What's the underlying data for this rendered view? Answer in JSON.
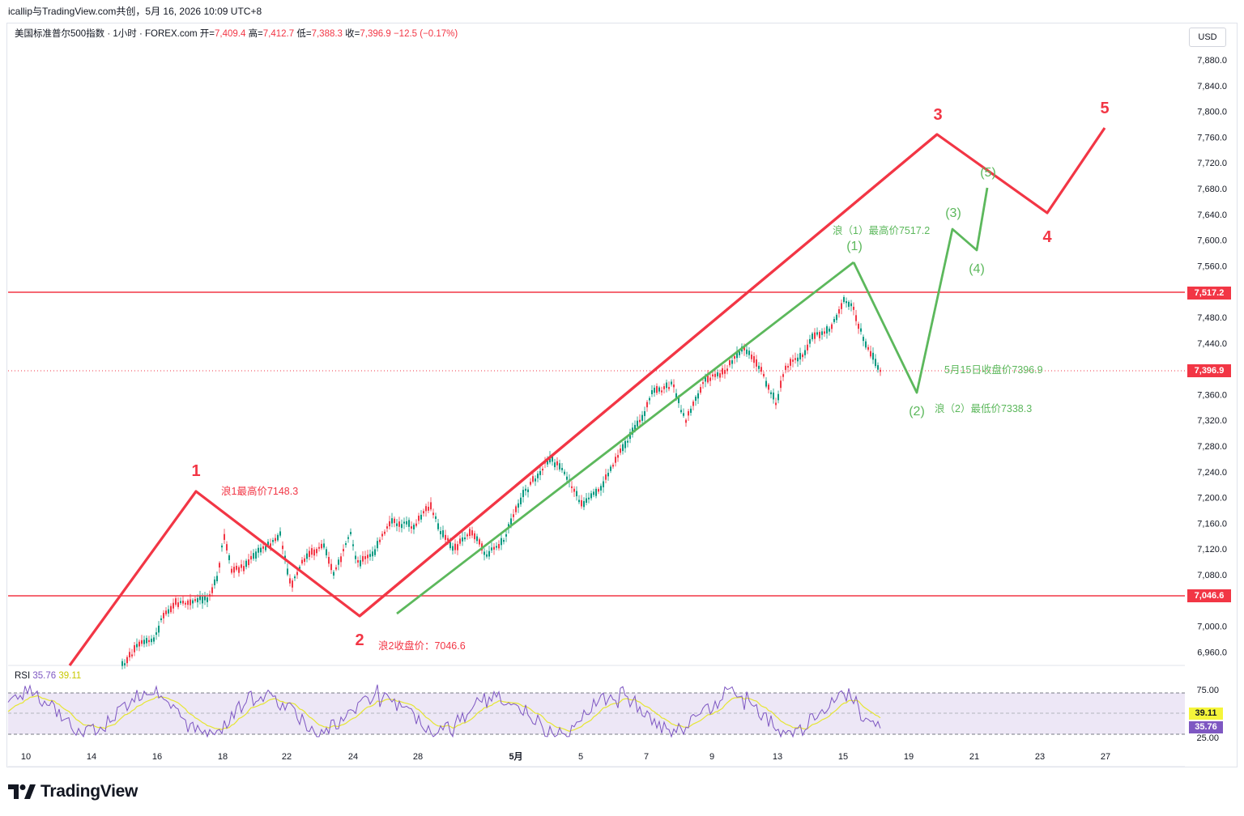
{
  "header": {
    "title": "icallip与TradingView.com共创，5月 16, 2026 10:09 UTC+8"
  },
  "legend": {
    "symbol": "美国标准普尔500指数 · 1小时 · FOREX.com",
    "open_label": "开=",
    "open": "7,409.4",
    "high_label": "高=",
    "high": "7,412.7",
    "low_label": "低=",
    "low": "7,388.3",
    "close_label": "收=",
    "close": "7,396.9",
    "change": "−12.5 (−0.17%)"
  },
  "currency": "USD",
  "price_axis": {
    "labels": [
      "7,880.0",
      "7,840.0",
      "7,800.0",
      "7,760.0",
      "7,720.0",
      "7,680.0",
      "7,640.0",
      "7,600.0",
      "7,560.0",
      "7,480.0",
      "7,440.0",
      "7,360.0",
      "7,320.0",
      "7,280.0",
      "7,240.0",
      "7,200.0",
      "7,160.0",
      "7,120.0",
      "7,080.0",
      "7,000.0",
      "6,960.0"
    ],
    "tags": {
      "resistance": "7,517.2",
      "last": "7,396.9",
      "support": "7,046.6"
    }
  },
  "time_axis": {
    "labels": [
      "10",
      "14",
      "16",
      "18",
      "22",
      "24",
      "28",
      "5月",
      "5",
      "7",
      "9",
      "13",
      "15",
      "19",
      "21",
      "23",
      "27"
    ]
  },
  "annotations": {
    "wave_red": [
      "1",
      "2",
      "3",
      "4",
      "5"
    ],
    "wave_green": [
      "(1)",
      "(2)",
      "(3)",
      "(4)",
      "(5)"
    ],
    "wave1_high": "浪1最高价7148.3",
    "wave2_close": "浪2收盘价：7046.6",
    "subwave1_high": "浪（1）最高价7517.2",
    "subwave2_low": "浪（2）最低价7338.3",
    "may15_close": "5月15日收盘价7396.9"
  },
  "rsi": {
    "label": "RSI",
    "value": "35.76",
    "ma_value": "39.11",
    "levels": [
      "75.00",
      "25.00"
    ]
  },
  "brand": "TradingView",
  "colors": {
    "red": "#f23645",
    "green": "#5cb85c",
    "up": "#089981",
    "down": "#f23645",
    "rsi": "#7e57c2",
    "rsi_ma": "#e6e632",
    "rsi_band": "#ede7f6"
  }
}
